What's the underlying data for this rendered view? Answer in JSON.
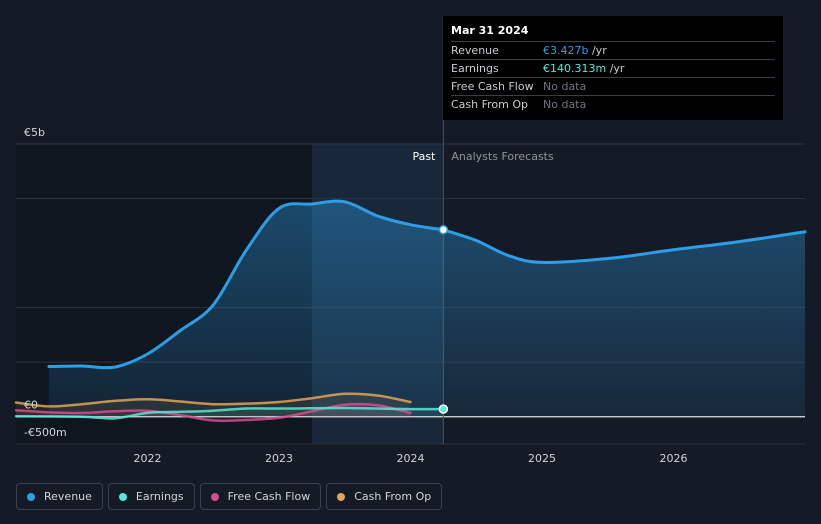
{
  "chart_data": {
    "type": "line",
    "title": "",
    "xlabel": "",
    "ylabel": "",
    "currency_prefix": "€",
    "y_ticks": [
      {
        "value": 5000,
        "label": "€5b"
      },
      {
        "value": 0,
        "label": "€0"
      },
      {
        "value": -500,
        "label": "-€500m"
      }
    ],
    "x_ticks": [
      {
        "value": 2022,
        "label": "2022"
      },
      {
        "value": 2023,
        "label": "2023"
      },
      {
        "value": 2024,
        "label": "2024"
      },
      {
        "value": 2025,
        "label": "2025"
      },
      {
        "value": 2026,
        "label": "2026"
      }
    ],
    "xlim": [
      2021.0,
      2027.0
    ],
    "ylim": [
      -500,
      5000
    ],
    "past_label": "Past",
    "forecast_label": "Analysts Forecasts",
    "forecast_start": 2024.25,
    "highlight_start": 2023.25,
    "series": [
      {
        "name": "Revenue",
        "color": "#2d9ee6",
        "past": [
          [
            2021.25,
            920
          ],
          [
            2021.5,
            930
          ],
          [
            2021.75,
            910
          ],
          [
            2022.0,
            1150
          ],
          [
            2022.25,
            1580
          ],
          [
            2022.5,
            2050
          ],
          [
            2022.75,
            3050
          ],
          [
            2023.0,
            3820
          ],
          [
            2023.25,
            3900
          ],
          [
            2023.5,
            3940
          ],
          [
            2023.75,
            3680
          ],
          [
            2024.0,
            3520
          ],
          [
            2024.25,
            3427
          ]
        ],
        "forecast": [
          [
            2024.25,
            3427
          ],
          [
            2024.5,
            3230
          ],
          [
            2024.75,
            2950
          ],
          [
            2025.0,
            2830
          ],
          [
            2025.5,
            2900
          ],
          [
            2026.0,
            3060
          ],
          [
            2026.5,
            3210
          ],
          [
            2027.0,
            3390
          ]
        ]
      },
      {
        "name": "Earnings",
        "color": "#58e8d6",
        "past": [
          [
            2021.0,
            10
          ],
          [
            2021.5,
            0
          ],
          [
            2021.75,
            -30
          ],
          [
            2022.0,
            70
          ],
          [
            2022.25,
            90
          ],
          [
            2022.5,
            110
          ],
          [
            2022.75,
            150
          ],
          [
            2023.0,
            150
          ],
          [
            2023.25,
            155
          ],
          [
            2023.5,
            160
          ],
          [
            2023.75,
            150
          ],
          [
            2024.0,
            140
          ],
          [
            2024.25,
            140.313
          ]
        ]
      },
      {
        "name": "Free Cash Flow",
        "color": "#d64b8f",
        "past": [
          [
            2021.0,
            120
          ],
          [
            2021.25,
            80
          ],
          [
            2021.5,
            70
          ],
          [
            2021.75,
            100
          ],
          [
            2022.0,
            110
          ],
          [
            2022.25,
            30
          ],
          [
            2022.5,
            -70
          ],
          [
            2022.75,
            -60
          ],
          [
            2023.0,
            -20
          ],
          [
            2023.25,
            100
          ],
          [
            2023.5,
            220
          ],
          [
            2023.75,
            210
          ],
          [
            2024.0,
            70
          ]
        ]
      },
      {
        "name": "Cash From Op",
        "color": "#e0a557",
        "past": [
          [
            2021.0,
            260
          ],
          [
            2021.25,
            190
          ],
          [
            2021.5,
            230
          ],
          [
            2021.75,
            290
          ],
          [
            2022.0,
            320
          ],
          [
            2022.25,
            280
          ],
          [
            2022.5,
            230
          ],
          [
            2022.75,
            240
          ],
          [
            2023.0,
            270
          ],
          [
            2023.25,
            340
          ],
          [
            2023.5,
            420
          ],
          [
            2023.75,
            390
          ],
          [
            2024.0,
            270
          ]
        ]
      }
    ],
    "tooltip": {
      "date": "Mar 31 2024",
      "rows": [
        {
          "label": "Revenue",
          "value": "€3.427b",
          "unit": " /yr",
          "color": "#2d9ee6"
        },
        {
          "label": "Earnings",
          "value": "€140.313m",
          "unit": " /yr",
          "color": "#58e8d6"
        },
        {
          "label": "Free Cash Flow",
          "value": "No data",
          "unit": "",
          "color": "#6f7580"
        },
        {
          "label": "Cash From Op",
          "value": "No data",
          "unit": "",
          "color": "#6f7580"
        }
      ]
    },
    "legend": [
      {
        "name": "Revenue",
        "color": "#2d9ee6"
      },
      {
        "name": "Earnings",
        "color": "#58e8d6"
      },
      {
        "name": "Free Cash Flow",
        "color": "#d64b8f"
      },
      {
        "name": "Cash From Op",
        "color": "#e0a557"
      }
    ]
  }
}
